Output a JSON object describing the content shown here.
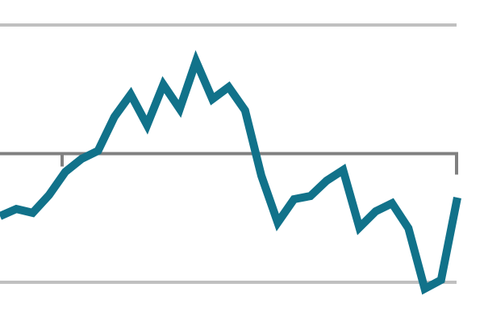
{
  "chart_data": {
    "type": "line",
    "categories": [
      null,
      null,
      null,
      null,
      null,
      null,
      null,
      null,
      null,
      null,
      null,
      null,
      null,
      null,
      null,
      null,
      null,
      null,
      null,
      null,
      null,
      null,
      null,
      null,
      null,
      null,
      null,
      null,
      null
    ],
    "series": [
      {
        "color": "#11728a",
        "values": [
          25.7,
          28.5,
          27.0,
          33.9,
          42.9,
          48.0,
          51.1,
          64.3,
          73.0,
          61.1,
          76.8,
          67.4,
          85.9,
          71.2,
          75.9,
          66.8,
          41.4,
          23.2,
          32.3,
          33.5,
          39.5,
          43.6,
          21.3,
          27.6,
          30.7,
          21.0,
          -2.5,
          0.9,
          32.9
        ]
      }
    ],
    "ylim": [
      0,
      100
    ],
    "yticks": [
      0,
      100
    ],
    "grid": true,
    "reference_line": 50
  }
}
